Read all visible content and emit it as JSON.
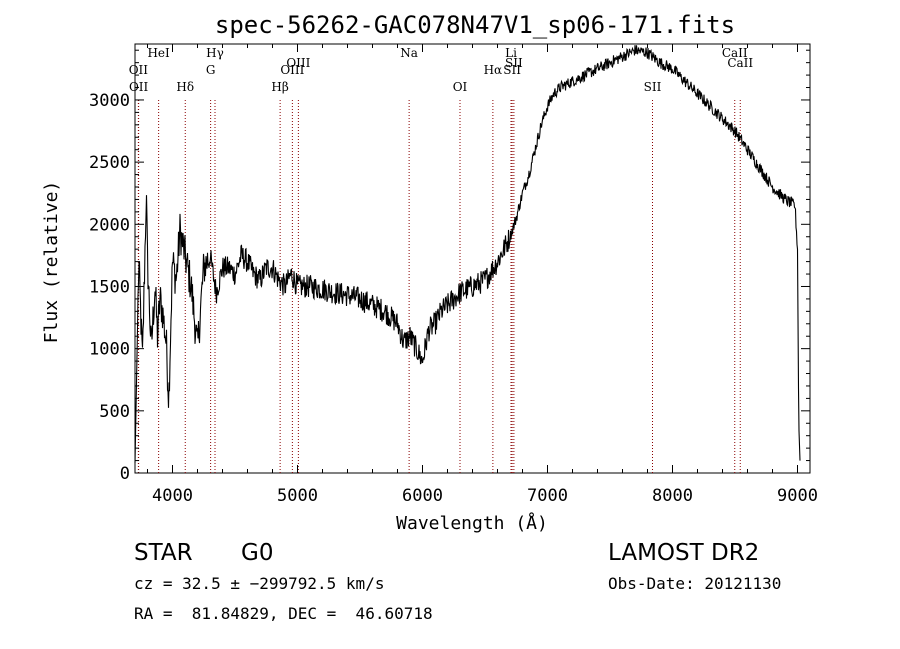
{
  "chart_data": {
    "type": "line",
    "title": "spec-56262-GAC078N47V1_sp06-171.fits",
    "xlabel": "Wavelength (Å)",
    "ylabel": "Flux (relative)",
    "xlim": [
      3700,
      9100
    ],
    "ylim": [
      0,
      3450
    ],
    "xticks": [
      4000,
      5000,
      6000,
      7000,
      8000,
      9000
    ],
    "yticks": [
      0,
      500,
      1000,
      1500,
      2000,
      2500,
      3000
    ],
    "grid": false,
    "series": [
      {
        "points": [
          [
            3700,
            80
          ],
          [
            3730,
            1700
          ],
          [
            3760,
            900
          ],
          [
            3790,
            2250
          ],
          [
            3800,
            1700
          ],
          [
            3830,
            1000
          ],
          [
            3860,
            1500
          ],
          [
            3880,
            1100
          ],
          [
            3900,
            1400
          ],
          [
            3920,
            1300
          ],
          [
            3950,
            1050
          ],
          [
            3970,
            600
          ],
          [
            4000,
            1700
          ],
          [
            4030,
            1550
          ],
          [
            4060,
            1950
          ],
          [
            4100,
            1750
          ],
          [
            4150,
            1500
          ],
          [
            4200,
            1000
          ],
          [
            4250,
            1650
          ],
          [
            4300,
            1750
          ],
          [
            4350,
            1450
          ],
          [
            4400,
            1650
          ],
          [
            4450,
            1650
          ],
          [
            4500,
            1600
          ],
          [
            4550,
            1750
          ],
          [
            4600,
            1700
          ],
          [
            4650,
            1600
          ],
          [
            4700,
            1550
          ],
          [
            4750,
            1650
          ],
          [
            4800,
            1650
          ],
          [
            4850,
            1550
          ],
          [
            4900,
            1500
          ],
          [
            4950,
            1600
          ],
          [
            5000,
            1500
          ],
          [
            5100,
            1500
          ],
          [
            5200,
            1480
          ],
          [
            5300,
            1450
          ],
          [
            5400,
            1430
          ],
          [
            5500,
            1400
          ],
          [
            5600,
            1350
          ],
          [
            5700,
            1300
          ],
          [
            5800,
            1200
          ],
          [
            5850,
            1050
          ],
          [
            5900,
            1100
          ],
          [
            5950,
            1000
          ],
          [
            6000,
            900
          ],
          [
            6050,
            1150
          ],
          [
            6100,
            1200
          ],
          [
            6150,
            1300
          ],
          [
            6200,
            1350
          ],
          [
            6250,
            1400
          ],
          [
            6300,
            1450
          ],
          [
            6400,
            1500
          ],
          [
            6500,
            1550
          ],
          [
            6600,
            1700
          ],
          [
            6650,
            1800
          ],
          [
            6700,
            1900
          ],
          [
            6750,
            2050
          ],
          [
            6800,
            2250
          ],
          [
            6850,
            2400
          ],
          [
            6900,
            2600
          ],
          [
            6950,
            2800
          ],
          [
            7000,
            2950
          ],
          [
            7050,
            3050
          ],
          [
            7100,
            3100
          ],
          [
            7200,
            3150
          ],
          [
            7300,
            3200
          ],
          [
            7400,
            3250
          ],
          [
            7500,
            3300
          ],
          [
            7600,
            3350
          ],
          [
            7700,
            3400
          ],
          [
            7800,
            3380
          ],
          [
            7900,
            3300
          ],
          [
            8000,
            3250
          ],
          [
            8100,
            3150
          ],
          [
            8200,
            3050
          ],
          [
            8300,
            2950
          ],
          [
            8400,
            2850
          ],
          [
            8500,
            2750
          ],
          [
            8600,
            2600
          ],
          [
            8700,
            2450
          ],
          [
            8800,
            2300
          ],
          [
            8900,
            2200
          ],
          [
            8980,
            2150
          ],
          [
            9000,
            1800
          ],
          [
            9010,
            400
          ],
          [
            9020,
            100
          ]
        ]
      }
    ],
    "lines": [
      {
        "label": "OII",
        "x": 3727,
        "row": 2
      },
      {
        "label": "OII",
        "x": 3729,
        "row": 3
      },
      {
        "label": "HeI",
        "x": 3889,
        "row": 1
      },
      {
        "label": "Hδ",
        "x": 4102,
        "row": 3
      },
      {
        "label": "Hγ",
        "x": 4340,
        "row": 1
      },
      {
        "label": "G",
        "x": 4305,
        "row": 2
      },
      {
        "label": "Hβ",
        "x": 4861,
        "row": 3
      },
      {
        "label": "OIII",
        "x": 4959,
        "row": 2
      },
      {
        "label": "OIII",
        "x": 5007,
        "row": 0
      },
      {
        "label": "Na",
        "x": 5893,
        "row": 1
      },
      {
        "label": "OI",
        "x": 6300,
        "row": 3
      },
      {
        "label": "Hα",
        "x": 6563,
        "row": 2
      },
      {
        "label": "Li",
        "x": 6708,
        "row": 1
      },
      {
        "label": "SII",
        "x": 6717,
        "row": 2
      },
      {
        "label": "SII",
        "x": 6731,
        "row": 0
      },
      {
        "label": "SII",
        "x": 7840,
        "row": 3
      },
      {
        "label": "CaII",
        "x": 8498,
        "row": 1
      },
      {
        "label": "CaII",
        "x": 8542,
        "row": 0
      }
    ],
    "line_label_color": "#8b0000"
  },
  "info": {
    "object_class": "STAR",
    "subclass": "G0",
    "survey": "LAMOST DR2",
    "redshift_line": "cz = 32.5 ± −299792.5 km/s",
    "obs_date_line": "Obs-Date: 20121130",
    "coords_line": "RA =  81.84829, DEC =  46.60718"
  }
}
